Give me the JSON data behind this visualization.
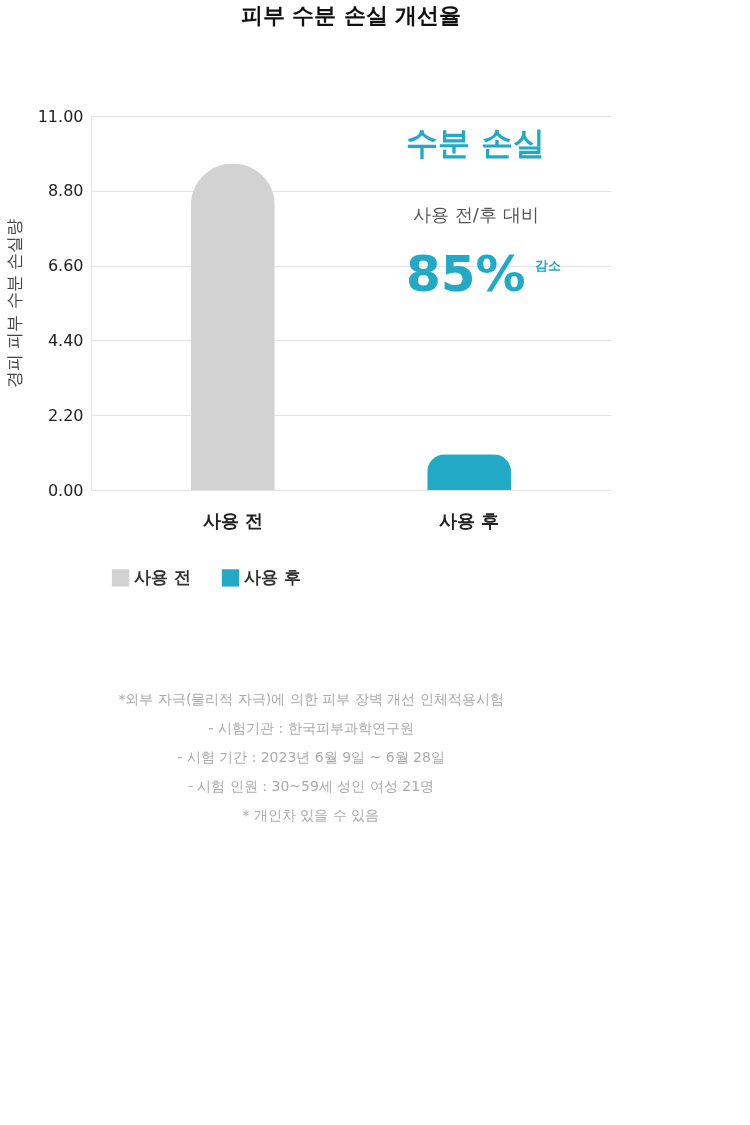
{
  "chart_data": {
    "type": "bar",
    "title": "피부 수분 손실 개선율",
    "ylabel": "경피 피부 수분 손실량",
    "categories": [
      "사용 전",
      "사용 후"
    ],
    "series": [
      {
        "name": "사용 전",
        "color": "#d2d2d2",
        "values": [
          9.6,
          null
        ]
      },
      {
        "name": "사용 후",
        "color": "#22a9c6",
        "values": [
          null,
          1.05
        ]
      }
    ],
    "ylim": [
      0,
      11
    ],
    "yticks": [
      {
        "value": 0,
        "label": "0.00"
      },
      {
        "value": 2.2,
        "label": "2.20"
      },
      {
        "value": 4.4,
        "label": "4.40"
      },
      {
        "value": 6.6,
        "label": "6.60"
      },
      {
        "value": 8.8,
        "label": "8.80"
      },
      {
        "value": 11,
        "label": "11.00"
      }
    ],
    "grid": "y",
    "legend": "bottom",
    "annotations": [
      "수분 손실",
      "사용 전/후 대비",
      "85%",
      "감소",
      "*외부 자극(물리적 자극)에 의한 피부 장벽 개선 인체적용시험",
      "- 시험기관 : 한국피부과학연구원",
      "- 시험 기간 : 2023년 6월 9일 ~ 6월 28일",
      "- 시험 인원 : 30~59세 성인 여성 21명",
      "* 개인차 있을 수 있음"
    ]
  }
}
